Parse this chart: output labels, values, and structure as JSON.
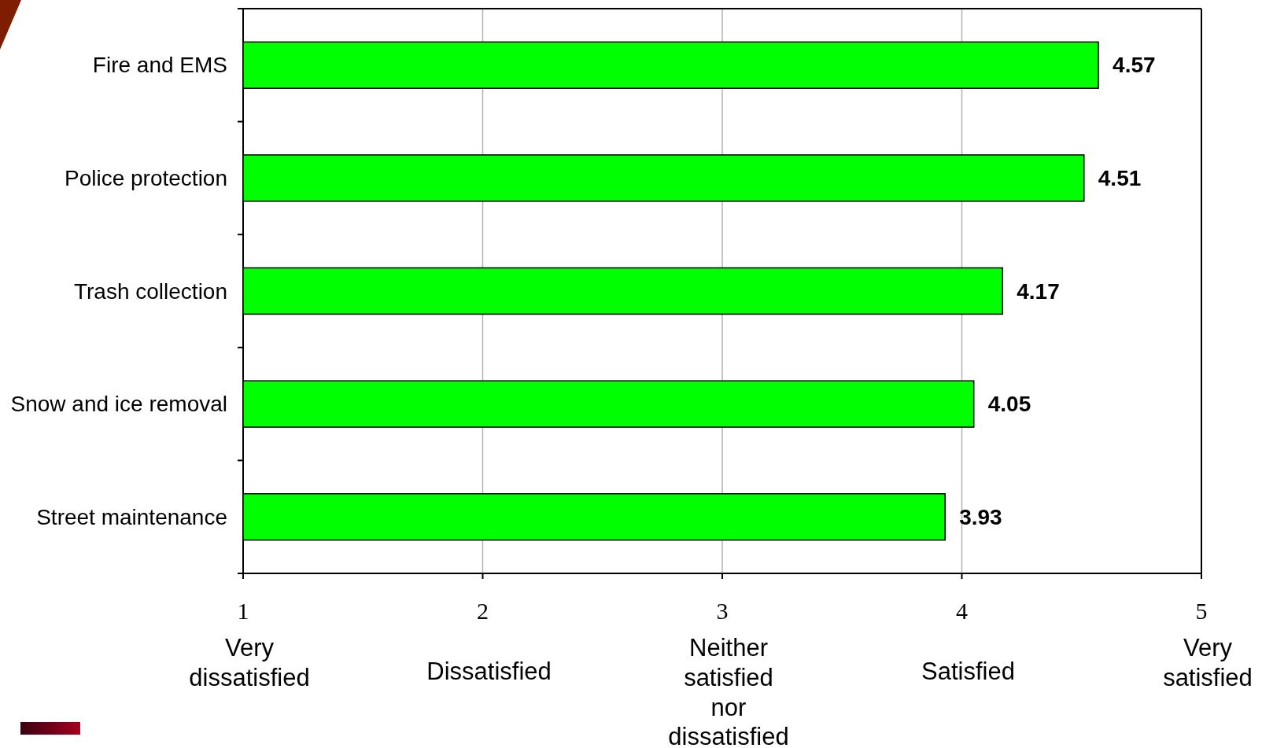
{
  "chart_data": {
    "type": "bar",
    "orientation": "horizontal",
    "categories": [
      "Fire and EMS",
      "Police protection",
      "Trash collection",
      "Snow and ice removal",
      "Street maintenance"
    ],
    "values": [
      4.57,
      4.51,
      4.17,
      4.05,
      3.93
    ],
    "color": "#00ff00",
    "xlim": [
      1,
      5
    ],
    "xticks": [
      1,
      2,
      3,
      4,
      5
    ],
    "grid": "x",
    "data_labels": true,
    "annotations": [
      "Very dissatisfied",
      "Dissatisfied",
      "Neither satisfied nor dissatisfied",
      "Satisfied",
      "Very satisfied"
    ]
  }
}
